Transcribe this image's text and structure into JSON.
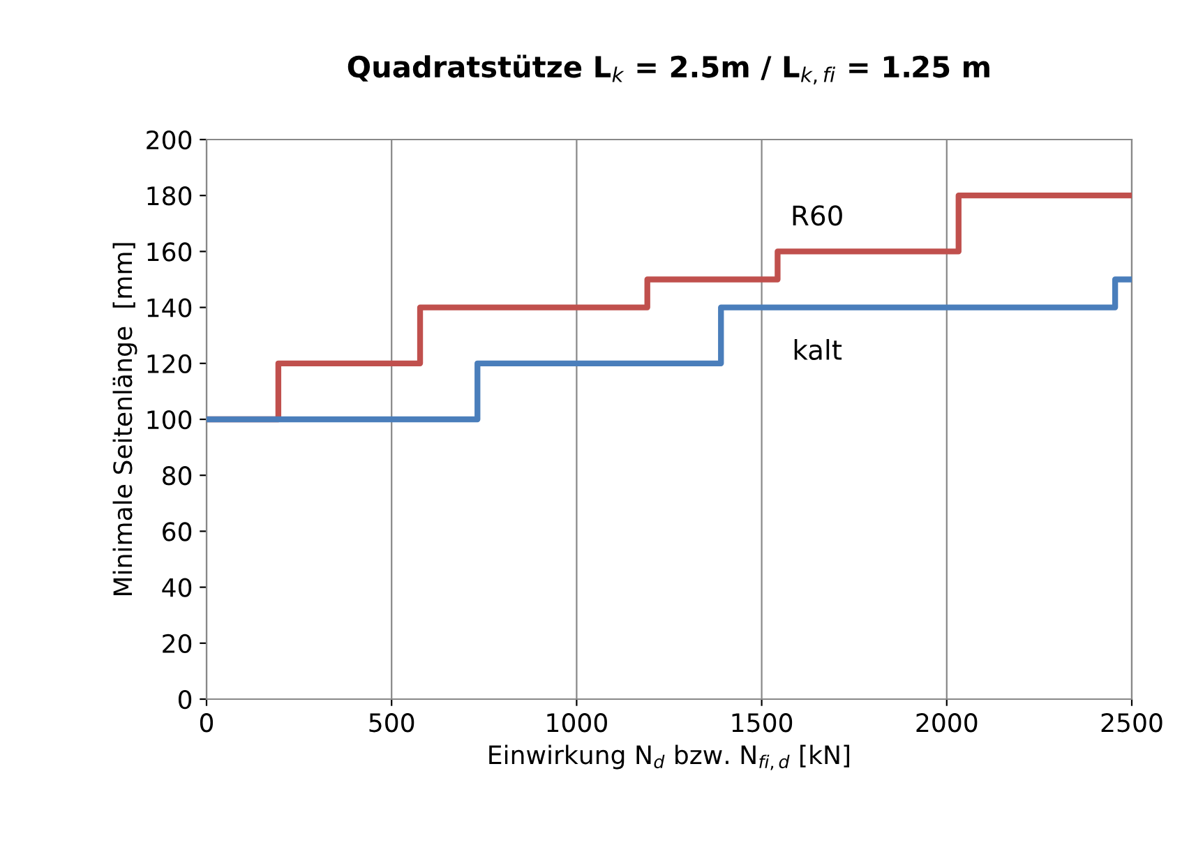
{
  "chart_data": {
    "type": "step",
    "title": "Quadratstütze L$_{k}$ = 2.5m / L$_{k,fi}$ = 1.25 m",
    "xlabel": "Einwirkung N$_{d}$ bzw. N$_{fi,d}$ [kN]",
    "ylabel": "Minimale Seitenlänge  [mm]",
    "series": [
      {
        "name": "R60",
        "color": "#c0504d",
        "x": [
          0,
          194,
          577,
          1191,
          1543,
          2032,
          2500
        ],
        "values": [
          100,
          120,
          140,
          150,
          160,
          180,
          180
        ]
      },
      {
        "name": "kalt",
        "color": "#4a7ebb",
        "x": [
          0,
          732,
          1390,
          2455,
          2500
        ],
        "values": [
          100,
          120,
          140,
          150,
          150
        ]
      }
    ],
    "xlim": [
      0,
      2500
    ],
    "xticks": [
      0,
      500,
      1000,
      1500,
      2000,
      2500
    ],
    "ylim": [
      0,
      200
    ],
    "yticks": [
      0,
      20,
      40,
      60,
      80,
      100,
      120,
      140,
      160,
      180,
      200
    ],
    "grid": "x"
  }
}
